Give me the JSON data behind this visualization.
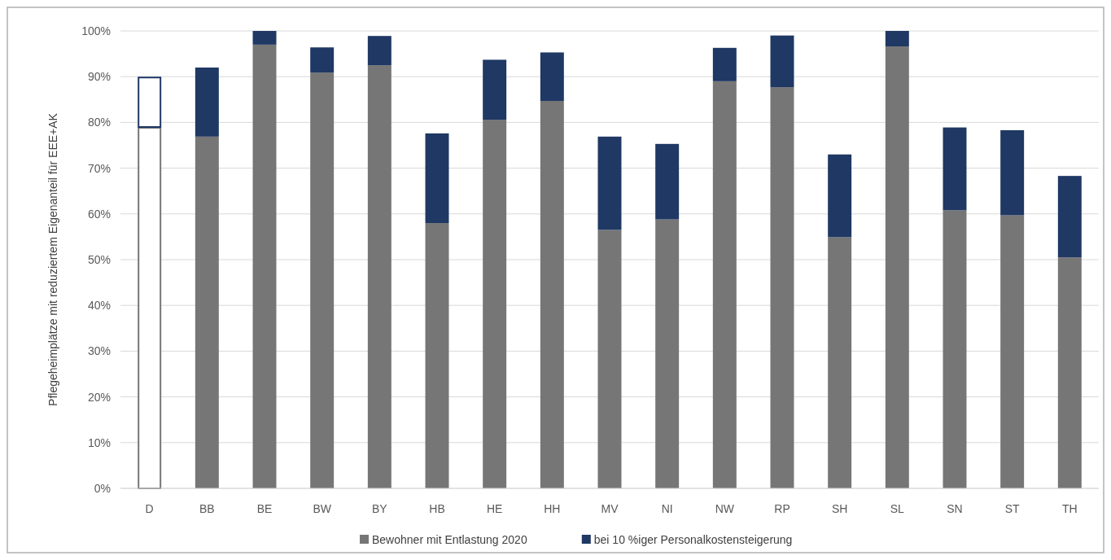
{
  "chart_data": {
    "type": "bar",
    "stacked": true,
    "ylabel": "Pflegeheimplätze mit reduziertem Eigenanteil für EEE+AK",
    "categories": [
      "D",
      "BB",
      "BE",
      "BW",
      "BY",
      "HB",
      "HE",
      "HH",
      "MV",
      "NI",
      "NW",
      "RP",
      "SH",
      "SL",
      "SN",
      "ST",
      "TH"
    ],
    "series": [
      {
        "name": "Bewohner mit Entlastung 2020",
        "color": "#767676",
        "colors": [
          "#ffffff",
          "#767676",
          "#767676",
          "#767676",
          "#767676",
          "#767676",
          "#767676",
          "#767676",
          "#767676",
          "#767676",
          "#767676",
          "#767676",
          "#767676",
          "#767676",
          "#767676",
          "#767676",
          "#767676"
        ],
        "values": [
          79,
          76.9,
          97,
          90.9,
          92.5,
          58,
          80.6,
          84.7,
          56.5,
          58.8,
          89,
          87.7,
          54.9,
          96.6,
          60.8,
          59.7,
          50.5
        ]
      },
      {
        "name": "bei 10 %iger Personalkostensteigerung",
        "color": "#1f3864",
        "colors": [
          "#ffffff",
          "#1f3864",
          "#1f3864",
          "#1f3864",
          "#1f3864",
          "#1f3864",
          "#1f3864",
          "#1f3864",
          "#1f3864",
          "#1f3864",
          "#1f3864",
          "#1f3864",
          "#1f3864",
          "#1f3864",
          "#1f3864",
          "#1f3864",
          "#1f3864"
        ],
        "values": [
          11,
          15.1,
          3,
          5.5,
          6.4,
          19.6,
          13.1,
          10.6,
          20.4,
          16.5,
          7.3,
          11.3,
          18.1,
          3.4,
          18.1,
          18.6,
          17.8
        ]
      }
    ],
    "ylim": [
      0,
      100
    ],
    "yticks": [
      {
        "value": 0,
        "label": "0%"
      },
      {
        "value": 10,
        "label": "10%"
      },
      {
        "value": 20,
        "label": "20%"
      },
      {
        "value": 30,
        "label": "30%"
      },
      {
        "value": 40,
        "label": "40%"
      },
      {
        "value": 50,
        "label": "50%"
      },
      {
        "value": 60,
        "label": "60%"
      },
      {
        "value": 70,
        "label": "70%"
      },
      {
        "value": 80,
        "label": "80%"
      },
      {
        "value": 90,
        "label": "90%"
      },
      {
        "value": 100,
        "label": "100%"
      }
    ],
    "grid": "y",
    "legend": "bottom"
  }
}
